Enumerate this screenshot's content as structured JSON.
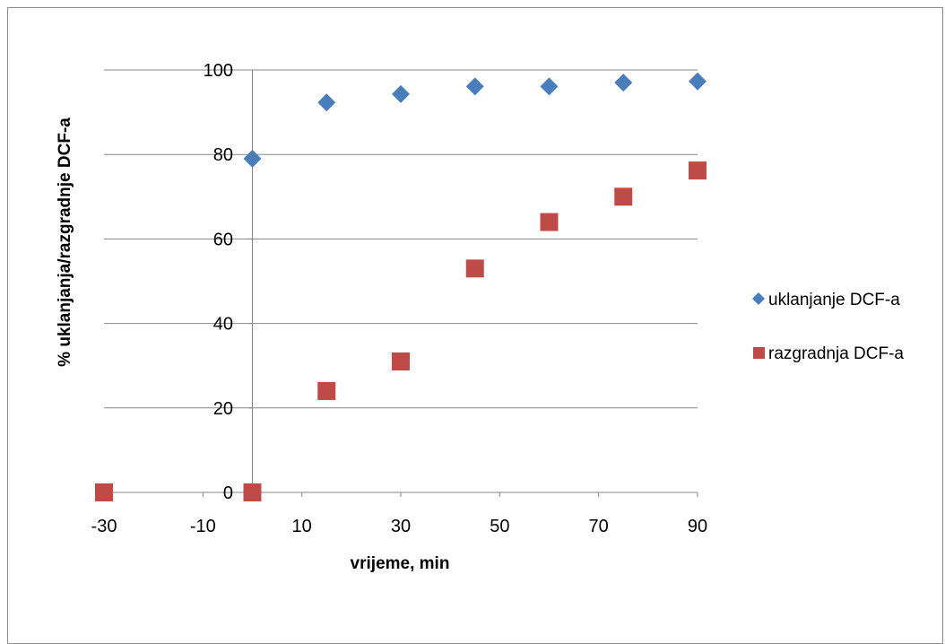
{
  "chart_data": {
    "type": "scatter",
    "xlabel": "vrijeme, min",
    "ylabel": "% uklanjanja/razgradnje  DCF-a",
    "xlim": [
      -30,
      90
    ],
    "ylim": [
      0,
      100
    ],
    "xticks": [
      -30,
      -10,
      10,
      30,
      50,
      70,
      90
    ],
    "yticks": [
      0,
      20,
      40,
      60,
      80,
      100
    ],
    "grid": "horizontal",
    "legend_position": "right",
    "series": [
      {
        "name": "uklanjanje DCF-a",
        "marker": "diamond",
        "color": "#4A7EBB",
        "x": [
          0,
          15,
          30,
          45,
          60,
          75,
          90
        ],
        "y": [
          79,
          92.3,
          94.3,
          96.1,
          96.1,
          97,
          97.3
        ]
      },
      {
        "name": "razgradnja DCF-a",
        "marker": "square",
        "color": "#BE4B48",
        "x": [
          -30,
          0,
          15,
          30,
          45,
          60,
          75,
          90
        ],
        "y": [
          0,
          0,
          24,
          31,
          53,
          64,
          70,
          76.2
        ]
      }
    ]
  }
}
